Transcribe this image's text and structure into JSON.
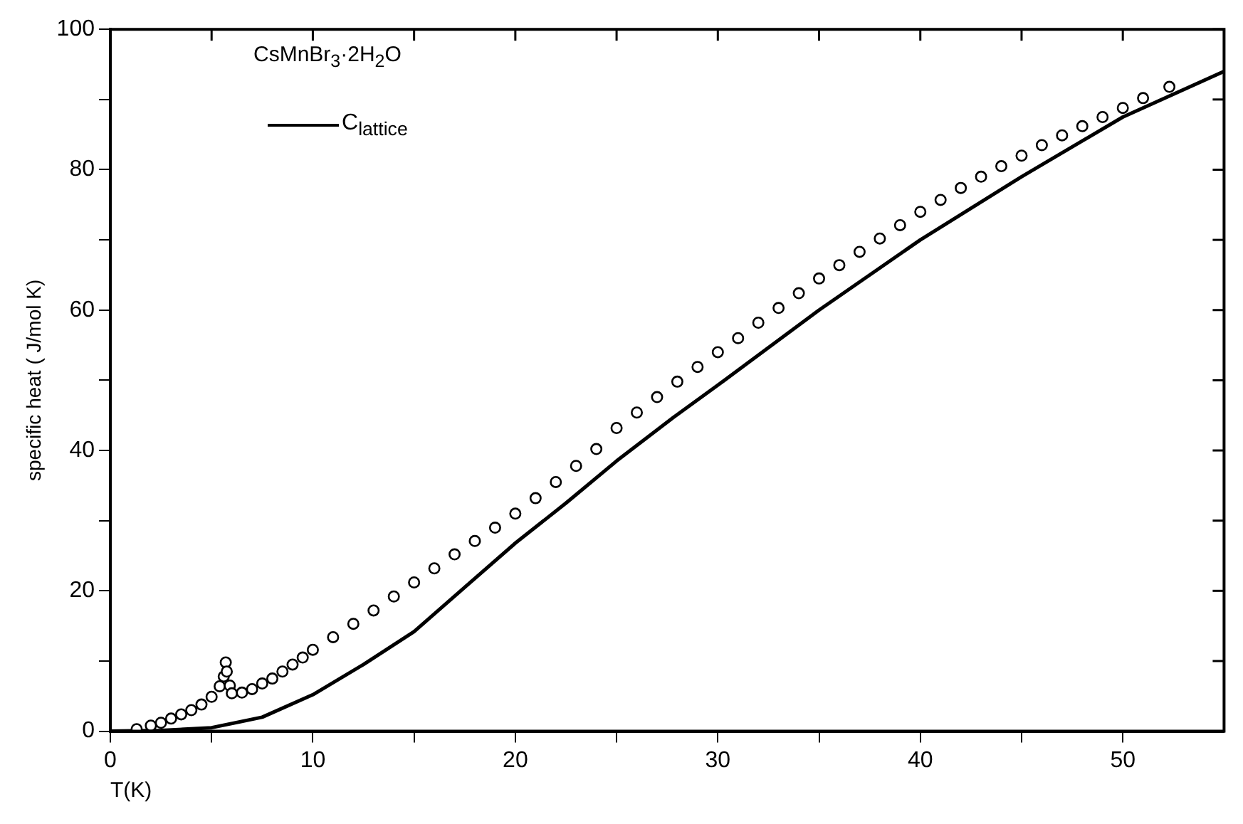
{
  "chart_data": {
    "type": "scatter",
    "xlabel": "T(K)",
    "ylabel": "specific heat ( J/mol K)",
    "annotations": [
      "CsMnBr$_{3}$·2H$_{2}$O"
    ],
    "legend": "top left",
    "marker": "circle",
    "grid": false,
    "xlim": [
      0,
      55
    ],
    "xticks": [
      0,
      {
        "value": 5,
        "label": null
      },
      10,
      {
        "value": 15,
        "label": null
      },
      20,
      {
        "value": 25,
        "label": null
      },
      30,
      {
        "value": 35,
        "label": null
      },
      40,
      {
        "value": 45,
        "label": null
      },
      50
    ],
    "ylim": [
      0,
      100
    ],
    "yticks": [
      0,
      {
        "value": 10,
        "label": null
      },
      20,
      {
        "value": 30,
        "label": null
      },
      40,
      {
        "value": 50,
        "label": null
      },
      60,
      {
        "value": 70,
        "label": null
      },
      80,
      {
        "value": 90,
        "label": null
      },
      100
    ],
    "series": [
      {
        "type": "scatter",
        "color": "#000000",
        "x": [
          1.3,
          2,
          2.5,
          3,
          3.5,
          4,
          4.5,
          5,
          5.4,
          5.6,
          5.7,
          5.75,
          5.9,
          6,
          6.5,
          7,
          7.5,
          8,
          8.5,
          9,
          9.5,
          10,
          11,
          12,
          13,
          14,
          15,
          16,
          17,
          18,
          19,
          20,
          21,
          22,
          23,
          24,
          25,
          26,
          27,
          28,
          29,
          30,
          31,
          32,
          33,
          34,
          35,
          36,
          37,
          38,
          39,
          40,
          41,
          42,
          43,
          44,
          45,
          46,
          47,
          48,
          49,
          50,
          51,
          52.3
        ],
        "values": [
          0.3,
          0.8,
          1.2,
          1.8,
          2.4,
          3,
          3.8,
          4.9,
          6.4,
          7.8,
          9.8,
          8.5,
          6.5,
          5.4,
          5.5,
          6,
          6.8,
          7.5,
          8.5,
          9.5,
          10.5,
          11.6,
          13.4,
          15.3,
          17.2,
          19.2,
          21.2,
          23.2,
          25.2,
          27.1,
          29,
          31,
          33.2,
          35.5,
          37.8,
          40.2,
          43.2,
          45.4,
          47.6,
          49.8,
          51.9,
          54,
          56,
          58.2,
          60.3,
          62.4,
          64.5,
          66.4,
          68.3,
          70.2,
          72.1,
          74,
          75.7,
          77.4,
          79,
          80.5,
          82,
          83.5,
          84.9,
          86.2,
          87.5,
          88.8,
          90.2,
          91.8
        ]
      },
      {
        "type": "line",
        "name": "C$_{lattice}$",
        "color": "#000000",
        "marker": "none",
        "line_style": "solid",
        "x": [
          0,
          2.5,
          5,
          7.5,
          10,
          12.5,
          15,
          17.5,
          20,
          22.5,
          25,
          27.8,
          30,
          35,
          40,
          45,
          50,
          55
        ],
        "values": [
          0,
          0.1,
          0.5,
          2,
          5.2,
          9.5,
          14.2,
          20.5,
          26.8,
          32.5,
          38.5,
          44.7,
          49.3,
          60,
          70,
          79,
          87.5,
          94
        ]
      }
    ]
  }
}
